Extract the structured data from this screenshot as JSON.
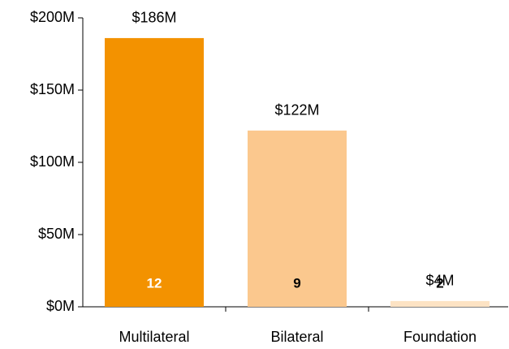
{
  "chart_data": {
    "type": "bar",
    "categories": [
      "Multilateral",
      "Bilateral",
      "Foundation"
    ],
    "values": [
      186,
      122,
      4
    ],
    "value_labels": [
      "$186M",
      "$122M",
      "$4M"
    ],
    "counts": [
      12,
      9,
      2
    ],
    "colors": [
      "#f39200",
      "#fbc88e",
      "#fde3c4"
    ],
    "count_colors": [
      "#ffffff",
      "#000000",
      "#000000"
    ],
    "ylim": [
      0,
      200
    ],
    "yticks": [
      {
        "value": 0,
        "label": "$0M"
      },
      {
        "value": 50,
        "label": "$50M"
      },
      {
        "value": 100,
        "label": "$100M"
      },
      {
        "value": 150,
        "label": "$150M"
      },
      {
        "value": 200,
        "label": "$200M"
      }
    ],
    "grid": false
  }
}
